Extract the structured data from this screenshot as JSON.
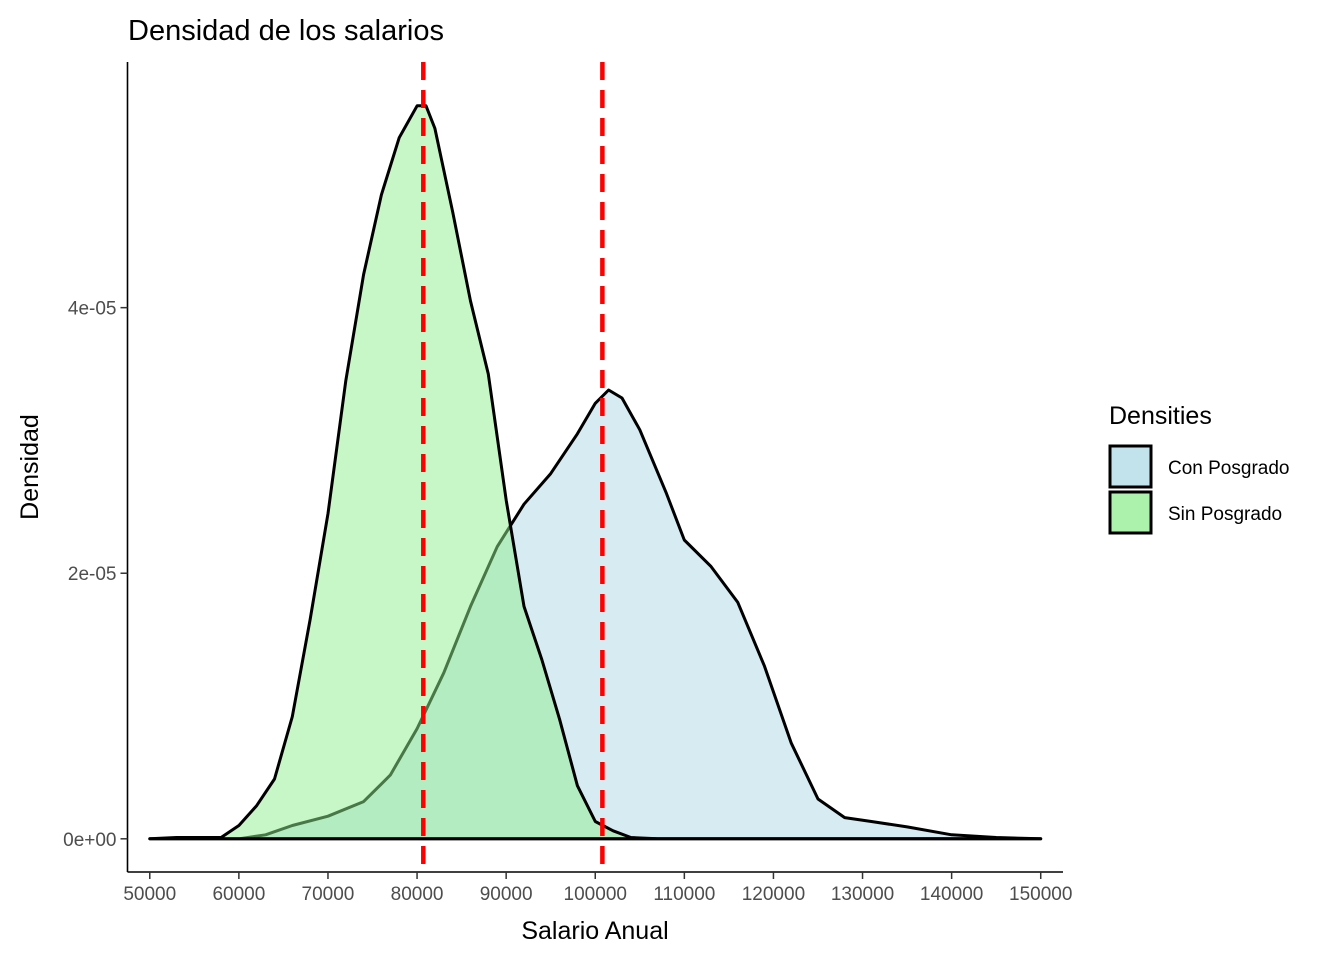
{
  "chart_data": {
    "type": "area",
    "title": "Densidad de los salarios",
    "xlabel": "Salario Anual",
    "ylabel": "Densidad",
    "xlim": [
      47500,
      152500
    ],
    "ylim": [
      -2.5e-06,
      5.85e-05
    ],
    "x_ticks": [
      50000,
      60000,
      70000,
      80000,
      90000,
      100000,
      110000,
      120000,
      130000,
      140000,
      150000
    ],
    "x_tick_labels": [
      "50000",
      "60000",
      "70000",
      "80000",
      "90000",
      "100000",
      "110000",
      "120000",
      "130000",
      "140000",
      "150000"
    ],
    "y_ticks": [
      0,
      2e-05,
      4e-05
    ],
    "y_tick_labels": [
      "0e+00",
      "2e-05",
      "4e-05"
    ],
    "grid": false,
    "legend": {
      "title": "Densities",
      "placement": "right",
      "entries": [
        {
          "label": "Con Posgrado",
          "color": "#add8e6"
        },
        {
          "label": "Sin Posgrado",
          "color": "#90ee90"
        }
      ]
    },
    "series": [
      {
        "name": "Con Posgrado",
        "fill": "#add8e6",
        "x": [
          50000,
          56000,
          60000,
          63000,
          66000,
          70000,
          74000,
          77000,
          80000,
          83000,
          86000,
          89000,
          92000,
          95000,
          98000,
          100000,
          101500,
          103000,
          105000,
          108000,
          110000,
          113000,
          116000,
          119000,
          122000,
          125000,
          128000,
          131000,
          135000,
          140000,
          145000,
          150000
        ],
        "y": [
          0,
          0,
          0,
          3e-07,
          1e-06,
          1.7e-06,
          2.8e-06,
          4.8e-06,
          8.3e-06,
          1.25e-05,
          1.75e-05,
          2.2e-05,
          2.52e-05,
          2.75e-05,
          3.05e-05,
          3.28e-05,
          3.38e-05,
          3.32e-05,
          3.08e-05,
          2.6e-05,
          2.25e-05,
          2.05e-05,
          1.78e-05,
          1.3e-05,
          7.2e-06,
          3e-06,
          1.6e-06,
          1.3e-06,
          9e-07,
          3e-07,
          1e-07,
          0
        ]
      },
      {
        "name": "Sin Posgrado",
        "fill": "#90ee90",
        "x": [
          50000,
          53000,
          58000,
          60000,
          62000,
          64000,
          66000,
          68000,
          70000,
          72000,
          74000,
          76000,
          78000,
          80000,
          81000,
          82000,
          84000,
          86000,
          88000,
          90000,
          91000,
          92000,
          94000,
          96000,
          98000,
          100000,
          102000,
          104000,
          107000,
          110000,
          150000
        ],
        "y": [
          0,
          1e-07,
          1e-07,
          1e-06,
          2.5e-06,
          4.5e-06,
          9.2e-06,
          1.65e-05,
          2.45e-05,
          3.45e-05,
          4.25e-05,
          4.85e-05,
          5.28e-05,
          5.52e-05,
          5.52e-05,
          5.35e-05,
          4.72e-05,
          4.05e-05,
          3.5e-05,
          2.55e-05,
          2.15e-05,
          1.75e-05,
          1.35e-05,
          9e-06,
          4e-06,
          1.3e-06,
          6e-07,
          1e-07,
          0,
          0,
          0
        ]
      }
    ],
    "vlines": [
      {
        "x": 80700,
        "color": "#ff0000",
        "style": "dashed"
      },
      {
        "x": 100800,
        "color": "#ff0000",
        "style": "dashed"
      }
    ]
  }
}
